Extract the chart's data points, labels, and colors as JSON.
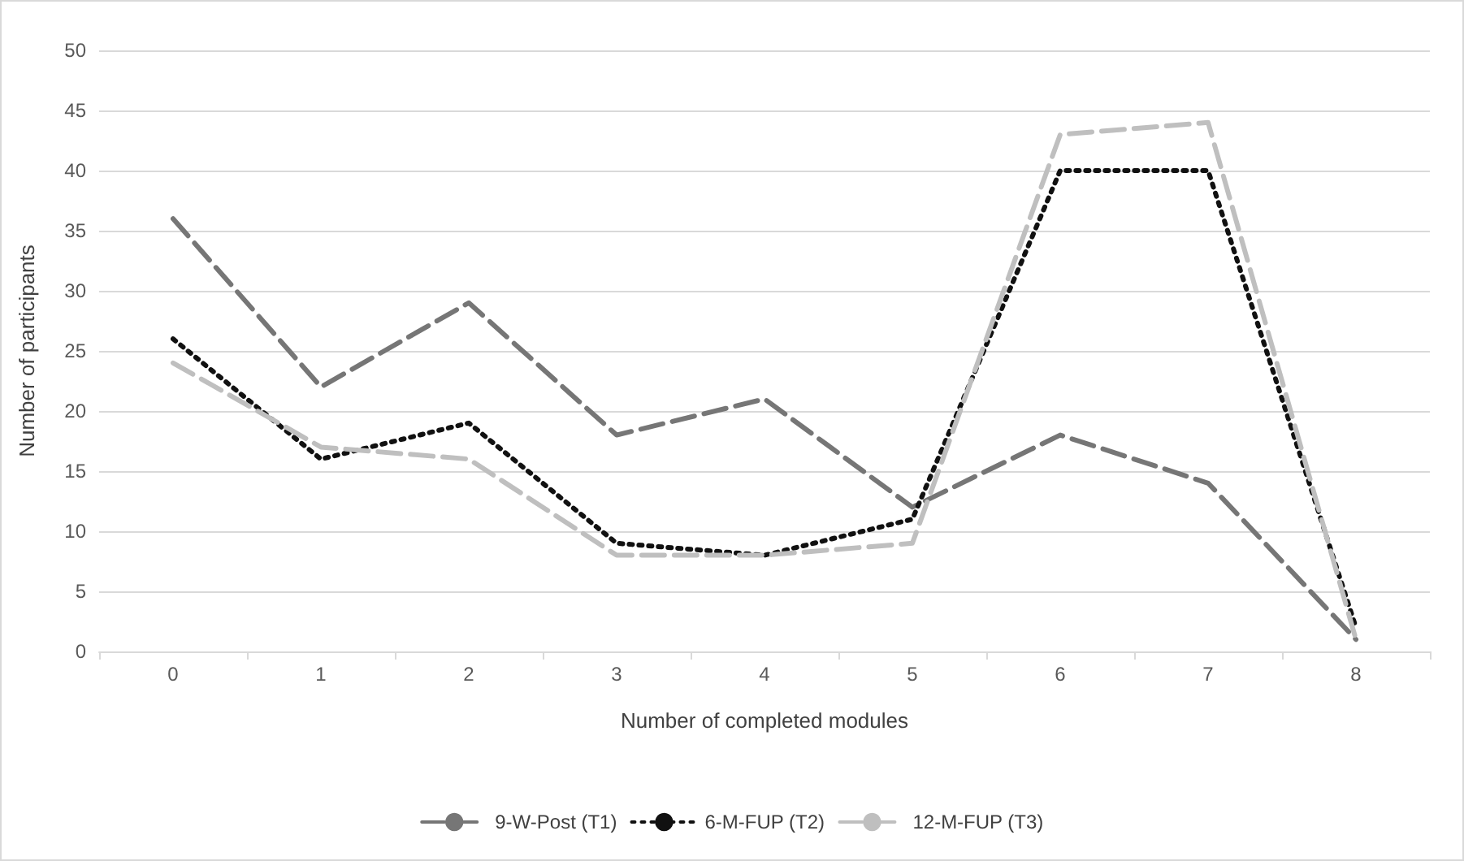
{
  "chart_data": {
    "type": "line",
    "xlabel": "Number of completed modules",
    "ylabel": "Number of participants",
    "categories": [
      "0",
      "1",
      "2",
      "3",
      "4",
      "5",
      "6",
      "7",
      "8"
    ],
    "series": [
      {
        "name": "9-W-Post (T1)",
        "color": "#767676",
        "line_style": "dashed",
        "values": [
          36,
          22,
          29,
          18,
          21,
          12,
          18,
          14,
          1
        ]
      },
      {
        "name": "6-M-FUP (T2)",
        "color": "#111111",
        "line_style": "dotted",
        "values": [
          26,
          16,
          19,
          9,
          8,
          11,
          40,
          40,
          2
        ]
      },
      {
        "name": "12-M-FUP (T3)",
        "color": "#bfbfbf",
        "line_style": "dashed",
        "values": [
          24,
          17,
          16,
          8,
          8,
          9,
          43,
          44,
          1
        ]
      }
    ],
    "ylim": [
      0,
      50
    ],
    "yticks": [
      0,
      5,
      10,
      15,
      20,
      25,
      30,
      35,
      40,
      45,
      50
    ],
    "grid": "y",
    "legend": "bottom",
    "marker": "none"
  }
}
